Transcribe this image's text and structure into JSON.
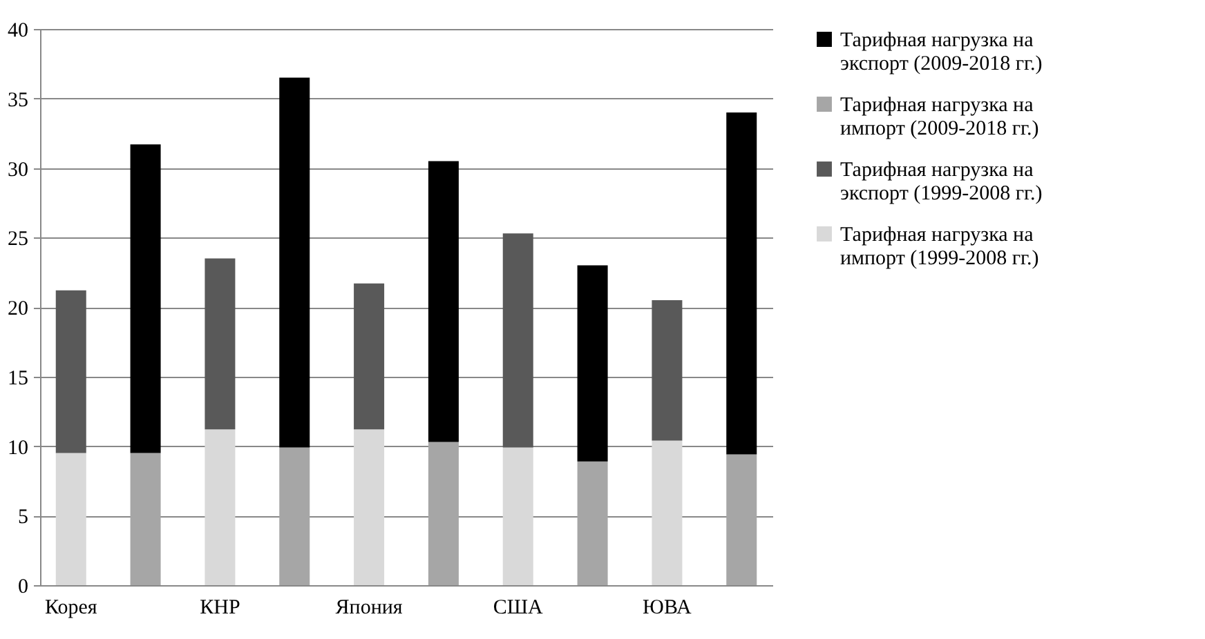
{
  "chart_data": {
    "type": "bar",
    "stacked": true,
    "categories": [
      "Корея",
      null,
      "КНР",
      null,
      "Япония",
      null,
      "США",
      null,
      "ЮВА",
      null
    ],
    "series": [
      {
        "name": "Тарифная нагрузка на импорт (1999-2008 гг.)",
        "color": "#d9d9d9",
        "values": [
          9.5,
          null,
          11.2,
          null,
          11.2,
          null,
          9.9,
          null,
          10.4,
          null
        ]
      },
      {
        "name": "Тарифная нагрузка на экспорт (1999-2008 гг.)",
        "color": "#595959",
        "values": [
          11.7,
          null,
          12.3,
          null,
          10.5,
          null,
          15.4,
          null,
          10.1,
          null
        ]
      },
      {
        "name": "Тарифная нагрузка на импорт (2009-2018 гг.)",
        "color": "#a6a6a6",
        "values": [
          null,
          9.5,
          null,
          9.9,
          null,
          10.3,
          null,
          8.9,
          null,
          9.4
        ]
      },
      {
        "name": "Тарифная нагрузка на экспорт (2009-2018 гг.)",
        "color": "#000000",
        "values": [
          null,
          22.2,
          null,
          26.6,
          null,
          20.2,
          null,
          14.1,
          null,
          24.6
        ]
      }
    ],
    "ylim": [
      0,
      40
    ],
    "yticks": [
      0,
      5,
      10,
      15,
      20,
      25,
      30,
      35,
      40
    ],
    "grid": "y",
    "legend": "right"
  }
}
